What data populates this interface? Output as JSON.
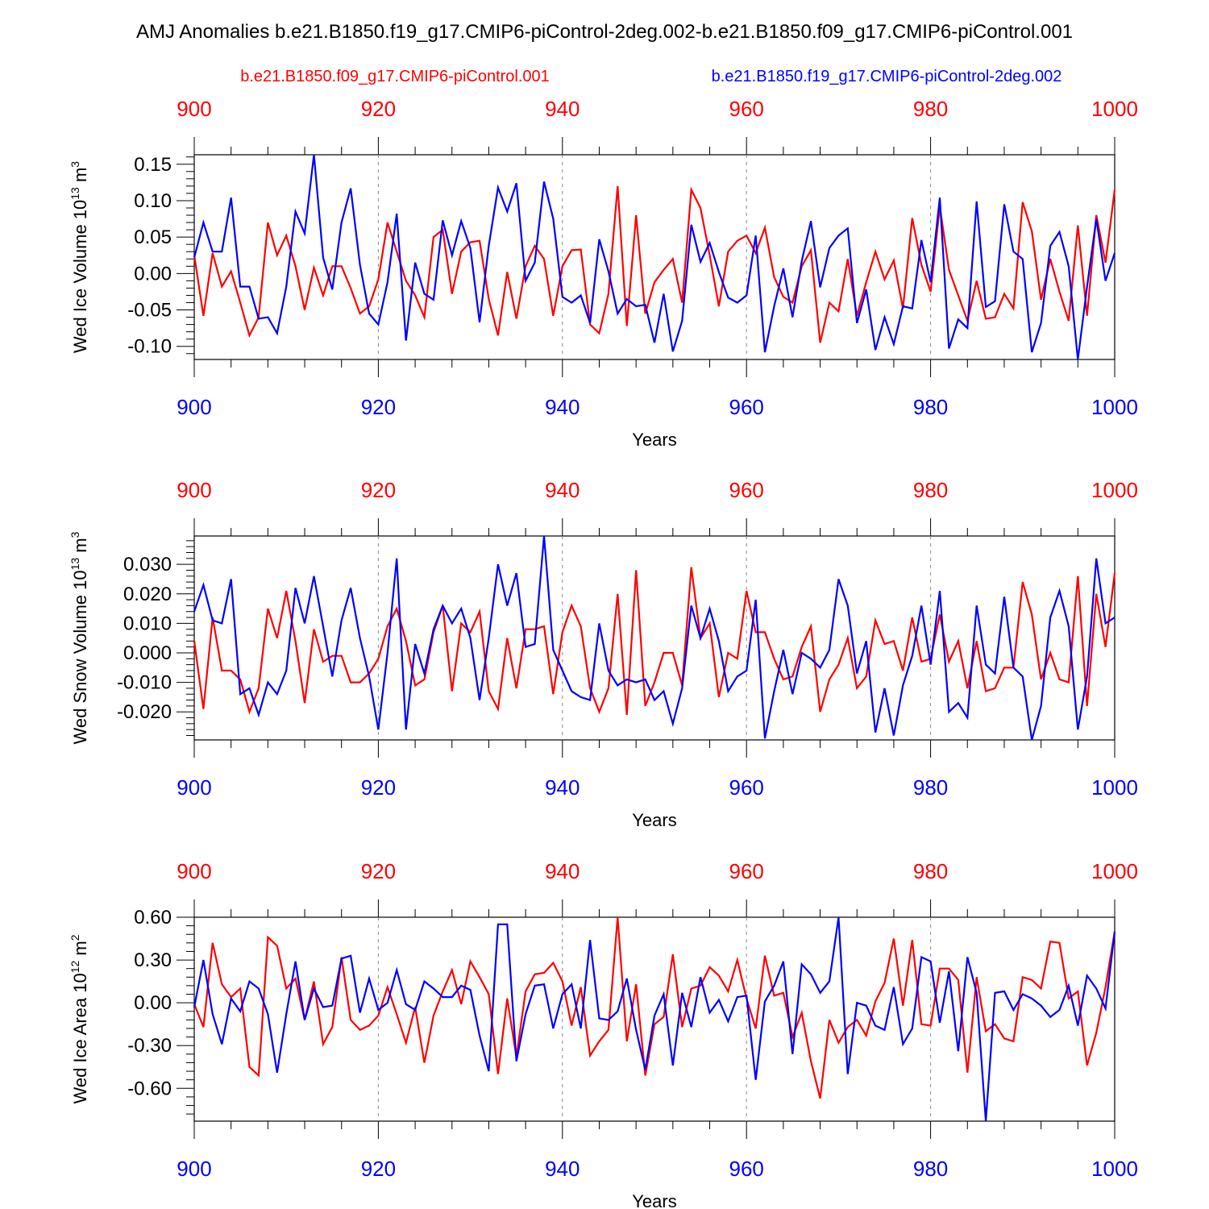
{
  "title": "AMJ Anomalies b.e21.B1850.f19_g17.CMIP6-piControl-2deg.002-b.e21.B1850.f09_g17.CMIP6-piControl.001",
  "colors": {
    "red": "#ff0000",
    "blue": "#0000ff"
  },
  "legend": {
    "red": "b.e21.B1850.f09_g17.CMIP6-piControl.001",
    "blue": "b.e21.B1850.f19_g17.CMIP6-piControl-2deg.002"
  },
  "chart_data": [
    {
      "type": "line",
      "name": "ice-volume",
      "ylabel_main": "Wed Ice Volume 10",
      "ylabel_exp": "13",
      "ylabel_unit": " m",
      "ylabel_unit_exp": "3",
      "xlabel": "Years",
      "xlim": [
        900,
        1000
      ],
      "ylim": [
        -0.118,
        0.163
      ],
      "yticks": [
        -0.1,
        -0.05,
        0.0,
        0.05,
        0.1,
        0.15
      ],
      "ytick_labels": [
        "-0.10",
        "-0.05",
        "0.00",
        "0.05",
        "0.10",
        "0.15"
      ],
      "xticks": [
        900,
        920,
        940,
        960,
        980,
        1000
      ],
      "xtick_labels": [
        "900",
        "920",
        "940",
        "960",
        "980",
        "1000"
      ],
      "series": [
        {
          "name": "b.e21.B1850.f09_g17.CMIP6-piControl.001",
          "color": "red",
          "values": [
            0.025,
            -0.058,
            0.028,
            -0.018,
            0.003,
            -0.04,
            -0.085,
            -0.06,
            0.07,
            0.025,
            0.052,
            0.01,
            -0.05,
            0.008,
            -0.03,
            0.01,
            0.01,
            -0.02,
            -0.055,
            -0.045,
            -0.008,
            0.07,
            0.03,
            -0.01,
            -0.03,
            -0.06,
            0.05,
            0.06,
            -0.028,
            0.03,
            0.043,
            0.045,
            -0.035,
            -0.085,
            0.002,
            -0.062,
            0.01,
            0.038,
            0.02,
            -0.058,
            0.01,
            0.032,
            0.033,
            -0.07,
            -0.082,
            -0.028,
            0.12,
            -0.072,
            0.08,
            -0.055,
            -0.012,
            0.005,
            0.02,
            -0.04,
            0.115,
            0.09,
            0.025,
            -0.045,
            0.03,
            0.045,
            0.052,
            0.028,
            0.063,
            -0.005,
            -0.032,
            -0.04,
            0.01,
            0.032,
            -0.095,
            -0.04,
            -0.052,
            0.02,
            -0.058,
            -0.012,
            0.03,
            -0.008,
            0.018,
            -0.048,
            0.076,
            0.012,
            -0.025,
            0.092,
            0.005,
            -0.03,
            -0.065,
            -0.01,
            -0.062,
            -0.06,
            -0.028,
            -0.048,
            0.098,
            0.058,
            -0.036,
            0.02,
            -0.025,
            -0.065,
            0.066,
            -0.058,
            0.08,
            0.015,
            0.115
          ]
        },
        {
          "name": "b.e21.B1850.f19_g17.CMIP6-piControl-2deg.002",
          "color": "blue",
          "values": [
            0.022,
            0.07,
            0.03,
            0.03,
            0.104,
            -0.018,
            -0.018,
            -0.062,
            -0.06,
            -0.082,
            -0.018,
            0.085,
            0.055,
            0.163,
            0.022,
            -0.022,
            0.07,
            0.117,
            0.012,
            -0.055,
            -0.07,
            -0.012,
            0.082,
            -0.092,
            0.015,
            -0.028,
            -0.036,
            0.073,
            0.025,
            0.072,
            0.035,
            -0.067,
            0.038,
            0.118,
            0.085,
            0.124,
            -0.01,
            0.015,
            0.126,
            0.075,
            -0.032,
            -0.04,
            -0.03,
            -0.068,
            0.047,
            0.003,
            -0.055,
            -0.035,
            -0.045,
            -0.043,
            -0.095,
            -0.028,
            -0.107,
            -0.065,
            0.067,
            0.016,
            0.042,
            0.002,
            -0.033,
            -0.04,
            -0.03,
            0.052,
            -0.108,
            -0.045,
            0.007,
            -0.06,
            0.017,
            0.072,
            -0.019,
            0.035,
            0.052,
            0.062,
            -0.068,
            -0.022,
            -0.105,
            -0.06,
            -0.097,
            -0.045,
            -0.048,
            0.046,
            -0.012,
            0.104,
            -0.103,
            -0.063,
            -0.075,
            0.099,
            -0.046,
            -0.038,
            0.095,
            0.03,
            0.02,
            -0.108,
            -0.068,
            0.038,
            0.057,
            0.01,
            -0.12,
            -0.018,
            0.075,
            -0.01,
            0.028
          ]
        }
      ]
    },
    {
      "type": "line",
      "name": "snow-volume",
      "ylabel_main": "Wed Snow Volume 10",
      "ylabel_exp": "13",
      "ylabel_unit": " m",
      "ylabel_unit_exp": "3",
      "xlabel": "Years",
      "xlim": [
        900,
        1000
      ],
      "ylim": [
        -0.0295,
        0.0396
      ],
      "yticks": [
        -0.02,
        -0.01,
        0.0,
        0.01,
        0.02,
        0.03
      ],
      "ytick_labels": [
        "-0.020",
        "-0.010",
        "0.000",
        "0.010",
        "0.020",
        "0.030"
      ],
      "xticks": [
        900,
        920,
        940,
        960,
        980,
        1000
      ],
      "xtick_labels": [
        "900",
        "920",
        "940",
        "960",
        "980",
        "1000"
      ],
      "series": [
        {
          "name": "b.e21.B1850.f09_g17.CMIP6-piControl.001",
          "color": "red",
          "values": [
            0.004,
            -0.019,
            0.012,
            -0.006,
            -0.006,
            -0.009,
            -0.02,
            -0.012,
            0.015,
            0.005,
            0.021,
            0.004,
            -0.017,
            0.008,
            -0.003,
            -0.001,
            -0.001,
            -0.01,
            -0.01,
            -0.007,
            -0.002,
            0.009,
            0.015,
            0.004,
            -0.011,
            -0.009,
            0.007,
            0.016,
            -0.013,
            0.01,
            0.007,
            0.014,
            -0.013,
            -0.019,
            0.005,
            -0.012,
            0.008,
            0.008,
            0.009,
            -0.014,
            0.007,
            0.016,
            0.009,
            -0.012,
            -0.02,
            -0.012,
            0.02,
            -0.021,
            0.028,
            -0.018,
            -0.01,
            0.0,
            0.0,
            -0.011,
            0.029,
            0.005,
            0.01,
            -0.015,
            0.0,
            -0.002,
            0.021,
            0.007,
            0.007,
            -0.002,
            -0.009,
            -0.008,
            0.002,
            0.009,
            -0.02,
            -0.009,
            -0.004,
            0.005,
            -0.012,
            -0.008,
            0.011,
            0.003,
            0.004,
            -0.006,
            0.012,
            -0.003,
            -0.002,
            0.013,
            -0.003,
            0.004,
            -0.012,
            0.004,
            -0.013,
            -0.012,
            -0.005,
            -0.005,
            0.024,
            0.013,
            -0.009,
            0.0,
            -0.009,
            -0.01,
            0.026,
            -0.018,
            0.02,
            0.002,
            0.027
          ]
        },
        {
          "name": "b.e21.B1850.f19_g17.CMIP6-piControl-2deg.002",
          "color": "blue",
          "values": [
            0.014,
            0.023,
            0.011,
            0.01,
            0.025,
            -0.014,
            -0.012,
            -0.021,
            -0.01,
            -0.014,
            -0.006,
            0.022,
            0.01,
            0.026,
            0.009,
            -0.008,
            0.011,
            0.022,
            0.005,
            -0.008,
            -0.026,
            0.0,
            0.032,
            -0.026,
            0.003,
            -0.007,
            0.008,
            0.016,
            0.01,
            0.015,
            0.005,
            -0.016,
            0.005,
            0.03,
            0.016,
            0.027,
            0.002,
            0.003,
            0.04,
            0.001,
            -0.006,
            -0.013,
            -0.015,
            -0.016,
            0.01,
            -0.006,
            -0.011,
            -0.009,
            -0.01,
            -0.009,
            -0.016,
            -0.013,
            -0.024,
            -0.012,
            0.016,
            0.005,
            0.015,
            0.004,
            -0.013,
            -0.008,
            -0.006,
            0.018,
            -0.029,
            -0.013,
            0.001,
            -0.014,
            0.0,
            -0.002,
            -0.005,
            0.001,
            0.025,
            0.016,
            -0.007,
            0.004,
            -0.027,
            -0.012,
            -0.028,
            -0.011,
            -0.001,
            0.016,
            -0.004,
            0.021,
            -0.02,
            -0.017,
            -0.022,
            0.016,
            -0.004,
            -0.007,
            0.019,
            -0.005,
            -0.008,
            -0.03,
            -0.018,
            0.012,
            0.021,
            0.009,
            -0.026,
            -0.008,
            0.032,
            0.01,
            0.012
          ]
        }
      ]
    },
    {
      "type": "line",
      "name": "ice-area",
      "ylabel_main": "Wed Ice Area 10",
      "ylabel_exp": "12",
      "ylabel_unit": " m",
      "ylabel_unit_exp": "2",
      "xlabel": "Years",
      "xlim": [
        900,
        1000
      ],
      "ylim": [
        -0.83,
        0.6
      ],
      "yticks": [
        -0.6,
        -0.3,
        0.0,
        0.3,
        0.6
      ],
      "ytick_labels": [
        "-0.60",
        "-0.30",
        "0.00",
        "0.30",
        "0.60"
      ],
      "xticks": [
        900,
        920,
        940,
        960,
        980,
        1000
      ],
      "xtick_labels": [
        "900",
        "920",
        "940",
        "960",
        "980",
        "1000"
      ],
      "series": [
        {
          "name": "b.e21.B1850.f09_g17.CMIP6-piControl.001",
          "color": "red",
          "values": [
            -0.01,
            -0.17,
            0.42,
            0.13,
            0.04,
            0.1,
            -0.45,
            -0.51,
            0.46,
            0.4,
            0.1,
            0.17,
            -0.12,
            0.15,
            -0.29,
            -0.17,
            0.32,
            -0.12,
            -0.19,
            -0.16,
            -0.09,
            0.11,
            -0.08,
            -0.28,
            -0.03,
            -0.42,
            -0.09,
            0.08,
            0.23,
            -0.01,
            0.29,
            0.18,
            0.06,
            -0.5,
            0.03,
            -0.38,
            0.08,
            0.2,
            0.21,
            0.28,
            0.15,
            -0.16,
            0.11,
            -0.37,
            -0.27,
            -0.19,
            0.61,
            -0.27,
            0.13,
            -0.51,
            -0.15,
            -0.1,
            0.34,
            -0.17,
            0.1,
            0.12,
            0.25,
            0.19,
            0.08,
            0.3,
            0.03,
            -0.18,
            0.33,
            0.05,
            0.07,
            -0.24,
            -0.07,
            -0.41,
            -0.67,
            -0.12,
            -0.28,
            -0.17,
            -0.12,
            -0.23,
            0.01,
            0.14,
            0.45,
            -0.02,
            0.44,
            -0.15,
            -0.16,
            0.24,
            0.24,
            0.16,
            -0.49,
            0.18,
            -0.2,
            -0.15,
            -0.25,
            -0.27,
            0.18,
            0.16,
            0.1,
            0.43,
            0.42,
            0.03,
            0.08,
            -0.44,
            -0.21,
            0.11,
            0.5
          ]
        },
        {
          "name": "b.e21.B1850.f19_g17.CMIP6-piControl-2deg.002",
          "color": "blue",
          "values": [
            -0.03,
            0.3,
            -0.08,
            -0.29,
            0.03,
            -0.06,
            0.15,
            0.1,
            -0.08,
            -0.49,
            -0.08,
            0.29,
            -0.12,
            0.1,
            -0.03,
            -0.02,
            0.31,
            0.33,
            -0.07,
            0.17,
            -0.05,
            0.0,
            0.23,
            -0.01,
            -0.05,
            0.15,
            0.1,
            0.04,
            0.04,
            0.12,
            0.09,
            -0.23,
            -0.48,
            0.55,
            0.55,
            -0.41,
            -0.08,
            0.12,
            0.13,
            -0.18,
            0.06,
            0.13,
            -0.18,
            0.44,
            -0.11,
            -0.12,
            -0.06,
            0.17,
            -0.19,
            -0.47,
            -0.09,
            0.06,
            -0.44,
            0.07,
            -0.17,
            0.18,
            -0.07,
            0.02,
            -0.13,
            0.04,
            0.05,
            -0.54,
            0.01,
            0.12,
            0.29,
            -0.36,
            0.27,
            0.2,
            0.07,
            0.15,
            0.61,
            -0.5,
            0.0,
            -0.02,
            -0.16,
            -0.19,
            0.11,
            -0.29,
            -0.18,
            0.32,
            0.29,
            -0.14,
            0.22,
            -0.34,
            0.32,
            0.07,
            -0.83,
            0.07,
            0.08,
            -0.05,
            0.06,
            0.03,
            -0.02,
            -0.1,
            -0.05,
            0.12,
            -0.16,
            0.19,
            0.1,
            -0.04,
            0.5
          ]
        }
      ]
    }
  ]
}
